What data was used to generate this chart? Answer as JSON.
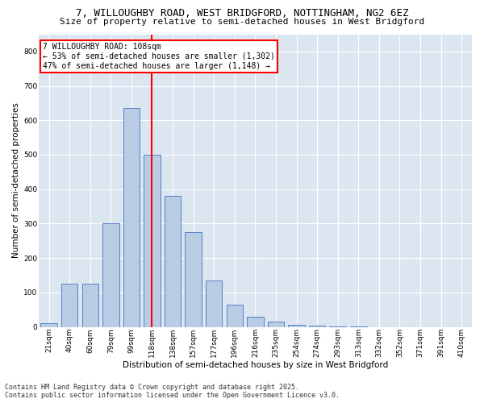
{
  "title1": "7, WILLOUGHBY ROAD, WEST BRIDGFORD, NOTTINGHAM, NG2 6EZ",
  "title2": "Size of property relative to semi-detached houses in West Bridgford",
  "xlabel": "Distribution of semi-detached houses by size in West Bridgford",
  "ylabel": "Number of semi-detached properties",
  "property_label": "7 WILLOUGHBY ROAD: 108sqm",
  "pct_smaller": 53,
  "n_smaller": 1302,
  "pct_larger": 47,
  "n_larger": 1148,
  "bar_color": "#b8cce4",
  "bar_edge_color": "#4472c4",
  "vline_color": "red",
  "plot_bg_color": "#dce6f1",
  "grid_color": "white",
  "categories": [
    "21sqm",
    "40sqm",
    "60sqm",
    "79sqm",
    "99sqm",
    "118sqm",
    "138sqm",
    "157sqm",
    "177sqm",
    "196sqm",
    "216sqm",
    "235sqm",
    "254sqm",
    "274sqm",
    "293sqm",
    "313sqm",
    "332sqm",
    "352sqm",
    "371sqm",
    "391sqm",
    "410sqm"
  ],
  "values": [
    10,
    125,
    125,
    300,
    635,
    500,
    380,
    275,
    135,
    65,
    30,
    15,
    5,
    3,
    2,
    1,
    0,
    0,
    0,
    0,
    0
  ],
  "ylim": [
    0,
    850
  ],
  "yticks": [
    0,
    100,
    200,
    300,
    400,
    500,
    600,
    700,
    800
  ],
  "vline_bin_index": 5,
  "footer1": "Contains HM Land Registry data © Crown copyright and database right 2025.",
  "footer2": "Contains public sector information licensed under the Open Government Licence v3.0.",
  "title1_fontsize": 9,
  "title2_fontsize": 8,
  "xlabel_fontsize": 7.5,
  "ylabel_fontsize": 7.5,
  "tick_fontsize": 6.5,
  "footer_fontsize": 6,
  "annotation_fontsize": 7
}
